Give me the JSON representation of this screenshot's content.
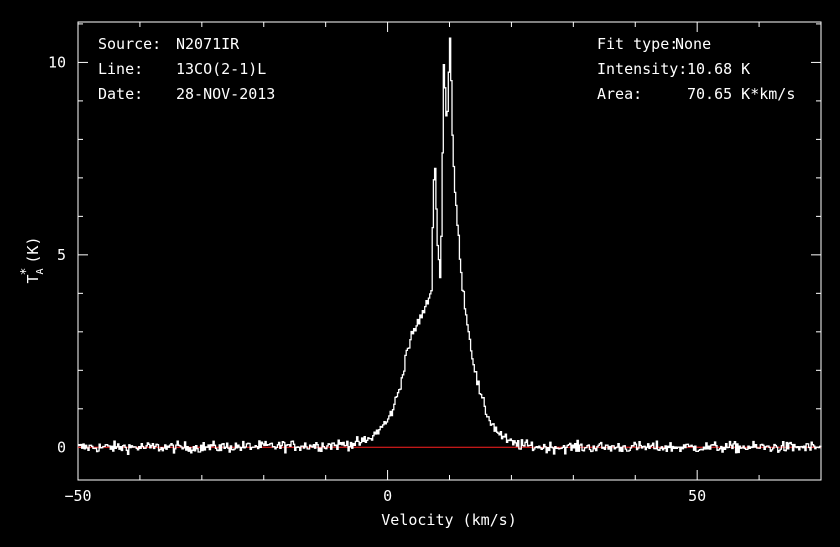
{
  "header": {
    "source_label": "Source:",
    "source_value": "N2071IR",
    "line_label": "Line:",
    "line_value": "13CO(2-1)L",
    "date_label": "Date:",
    "date_value": "28-NOV-2013",
    "fit_label": "Fit type:",
    "fit_value": "None",
    "intensity_label": "Intensity:",
    "intensity_value": "10.68 K",
    "area_label": "Area:",
    "area_value": "70.65 K*km/s"
  },
  "colors": {
    "background": "#000000",
    "axes": "#ffffff",
    "spectrum": "#ffffff",
    "baseline": "#ff2020"
  },
  "chart_data": {
    "type": "line",
    "xlabel": "Velocity (km/s)",
    "ylabel": "T_A^* (K)",
    "xlim": [
      -50,
      70
    ],
    "ylim": [
      -0.85,
      11.05
    ],
    "x_ticks": [
      -50,
      0,
      50
    ],
    "y_ticks": [
      0,
      5,
      10
    ],
    "baseline": 0,
    "grid": false,
    "series": [
      {
        "x": [
          -50,
          -30,
          -10,
          -5,
          -3,
          0,
          1,
          2,
          3,
          4,
          5,
          6,
          7,
          7.5,
          8,
          8.5,
          9,
          9.5,
          10,
          10.5,
          11,
          12,
          13,
          14,
          15,
          16,
          17,
          18,
          19,
          20,
          22,
          25,
          30,
          50,
          70
        ],
        "values": [
          0,
          0,
          0.05,
          0.1,
          0.2,
          0.7,
          1.1,
          1.6,
          2.5,
          2.95,
          3.3,
          3.6,
          4.1,
          7.85,
          5.2,
          4.3,
          10.0,
          8.3,
          10.65,
          7.5,
          6.2,
          4.2,
          3.0,
          2.0,
          1.3,
          0.85,
          0.55,
          0.35,
          0.2,
          0.1,
          0.05,
          0,
          0,
          0,
          0
        ],
        "noise_rms": 0.1
      }
    ]
  }
}
